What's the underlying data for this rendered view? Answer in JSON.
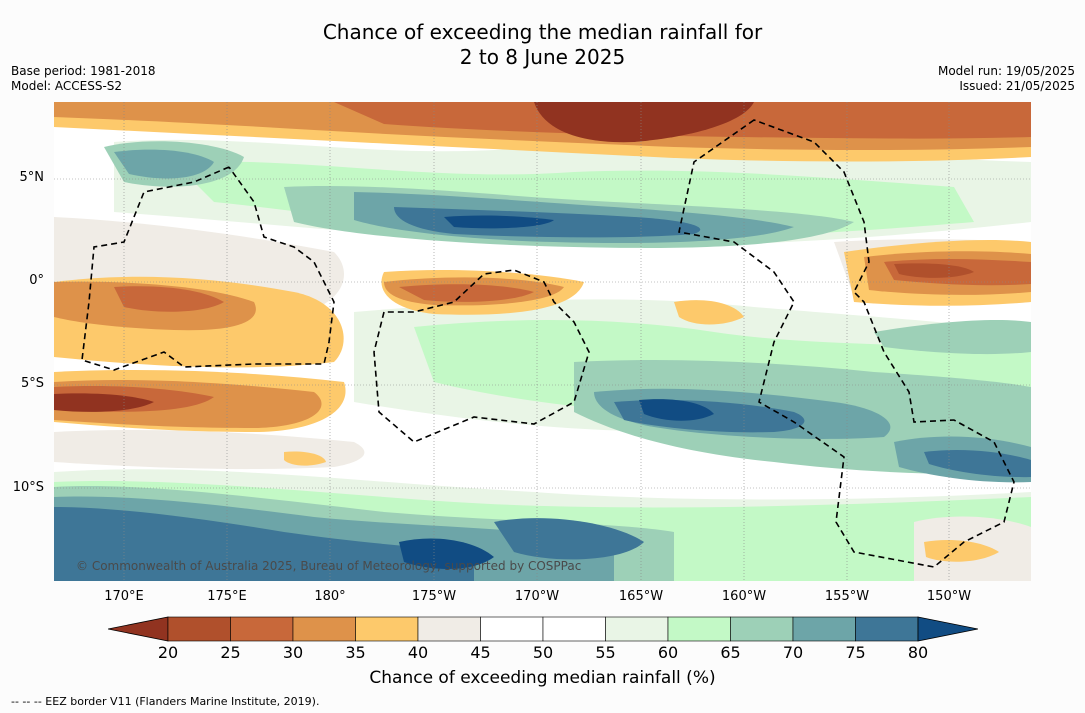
{
  "title": {
    "line1": "Chance of exceeding the median rainfall for",
    "line2": "2 to 8 June 2025"
  },
  "meta": {
    "base_period": "Base period: 1981-2018",
    "model": "Model: ACCESS-S2",
    "model_run": "Model run: 19/05/2025",
    "issued": "Issued: 21/05/2025"
  },
  "map": {
    "lat_labels": [
      "5°N",
      "0°",
      "5°S",
      "10°S"
    ],
    "lon_labels": [
      "170°E",
      "175°E",
      "180°",
      "175°W",
      "170°W",
      "165°W",
      "160°W",
      "155°W",
      "150°W"
    ],
    "copyright": "© Commonwealth of Australia 2025, Bureau of Meteorology, supported by COSPPac"
  },
  "colorbar": {
    "ticks": [
      "20",
      "25",
      "30",
      "35",
      "40",
      "45",
      "50",
      "55",
      "60",
      "65",
      "70",
      "75",
      "80"
    ],
    "colors": [
      "#913320",
      "#b0502c",
      "#c8683a",
      "#de924a",
      "#fdc96b",
      "#f0ece6",
      "#ffffff",
      "#ffffff",
      "#e9f5e6",
      "#c3f9c6",
      "#9dd0b7",
      "#6da5a8",
      "#3e7697",
      "#114c83"
    ],
    "label": "Chance of exceeding median rainfall (%)"
  },
  "footer": "-- -- -- EEZ border V11 (Flanders Marine Institute, 2019)."
}
